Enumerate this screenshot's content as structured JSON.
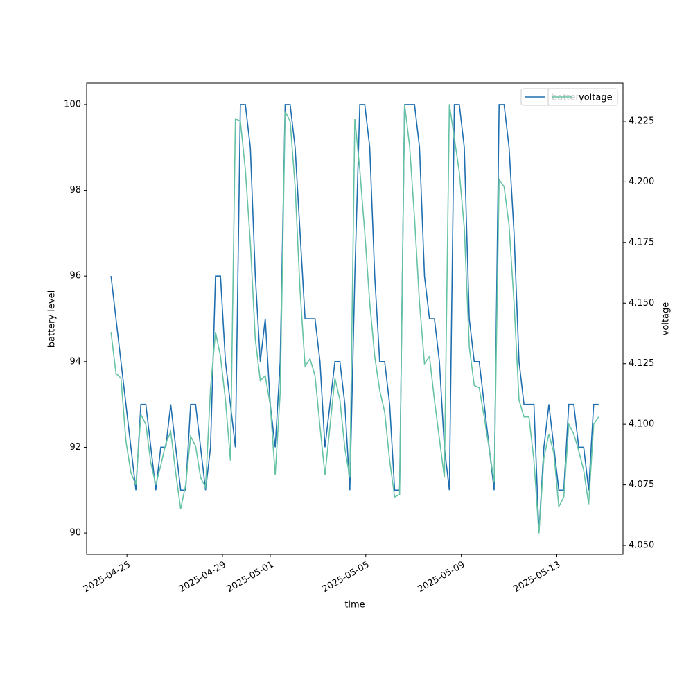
{
  "chart_data": {
    "type": "line",
    "xlabel": "time",
    "ylabel": "battery level",
    "y2label": "voltage",
    "x": [
      "2025-04-24 08:00",
      "2025-04-24 13:00",
      "2025-04-24 18:00",
      "2025-04-24 23:00",
      "2025-04-25 04:00",
      "2025-04-25 09:00",
      "2025-04-25 14:00",
      "2025-04-25 19:00",
      "2025-04-26 00:00",
      "2025-04-26 05:00",
      "2025-04-26 10:00",
      "2025-04-26 15:00",
      "2025-04-26 20:00",
      "2025-04-27 01:00",
      "2025-04-27 06:00",
      "2025-04-27 11:00",
      "2025-04-27 16:00",
      "2025-04-27 21:00",
      "2025-04-28 02:00",
      "2025-04-28 07:00",
      "2025-04-28 12:00",
      "2025-04-28 17:00",
      "2025-04-28 22:00",
      "2025-04-29 03:00",
      "2025-04-29 08:00",
      "2025-04-29 13:00",
      "2025-04-29 18:00",
      "2025-04-29 23:00",
      "2025-04-30 04:00",
      "2025-04-30 09:00",
      "2025-04-30 14:00",
      "2025-04-30 19:00",
      "2025-05-01 00:00",
      "2025-05-01 05:00",
      "2025-05-01 10:00",
      "2025-05-01 15:00",
      "2025-05-01 20:00",
      "2025-05-02 01:00",
      "2025-05-02 06:00",
      "2025-05-02 11:00",
      "2025-05-02 16:00",
      "2025-05-02 21:00",
      "2025-05-03 02:00",
      "2025-05-03 07:00",
      "2025-05-03 12:00",
      "2025-05-03 17:00",
      "2025-05-03 22:00",
      "2025-05-04 03:00",
      "2025-05-04 08:00",
      "2025-05-04 13:00",
      "2025-05-04 18:00",
      "2025-05-04 23:00",
      "2025-05-05 04:00",
      "2025-05-05 09:00",
      "2025-05-05 14:00",
      "2025-05-05 19:00",
      "2025-05-06 00:00",
      "2025-05-06 05:00",
      "2025-05-06 10:00",
      "2025-05-06 15:00",
      "2025-05-06 20:00",
      "2025-05-07 01:00",
      "2025-05-07 06:00",
      "2025-05-07 11:00",
      "2025-05-07 16:00",
      "2025-05-07 21:00",
      "2025-05-08 02:00",
      "2025-05-08 07:00",
      "2025-05-08 12:00",
      "2025-05-08 17:00",
      "2025-05-08 22:00",
      "2025-05-09 03:00",
      "2025-05-09 08:00",
      "2025-05-09 13:00",
      "2025-05-09 18:00",
      "2025-05-09 23:00",
      "2025-05-10 04:00",
      "2025-05-10 09:00",
      "2025-05-10 14:00",
      "2025-05-10 19:00",
      "2025-05-11 00:00",
      "2025-05-11 05:00",
      "2025-05-11 10:00",
      "2025-05-11 15:00",
      "2025-05-11 20:00",
      "2025-05-12 01:00",
      "2025-05-12 06:00",
      "2025-05-12 11:00",
      "2025-05-12 16:00",
      "2025-05-12 21:00",
      "2025-05-13 02:00",
      "2025-05-13 07:00",
      "2025-05-13 12:00",
      "2025-05-13 17:00",
      "2025-05-13 22:00",
      "2025-05-14 03:00",
      "2025-05-14 08:00",
      "2025-05-14 13:00",
      "2025-05-14 18:00"
    ],
    "series": [
      {
        "name": "battery",
        "color": "#1f6fb0",
        "values": [
          96,
          95,
          94,
          93,
          92,
          91,
          93,
          93,
          92,
          91,
          92,
          92,
          93,
          92,
          91,
          91,
          93,
          93,
          92,
          91,
          92,
          96,
          96,
          94,
          93,
          92,
          100,
          100,
          99,
          96,
          94,
          95,
          93,
          92,
          94,
          100,
          100,
          99,
          97,
          95,
          95,
          95,
          94,
          92,
          93,
          94,
          94,
          93,
          91,
          96,
          100,
          100,
          99,
          96,
          94,
          94,
          93,
          91,
          91,
          100,
          100,
          100,
          99,
          96,
          95,
          95,
          94,
          92,
          91,
          100,
          100,
          99,
          95,
          94,
          94,
          93,
          92,
          91,
          100,
          100,
          99,
          97,
          94,
          93,
          93,
          93,
          90,
          92,
          93,
          92,
          91,
          91,
          93,
          93,
          92,
          92,
          91,
          93,
          93
        ]
      },
      {
        "name": "voltage",
        "color": "#66c2a5",
        "axis": "y2",
        "values": [
          4.138,
          4.121,
          4.119,
          4.093,
          4.08,
          4.075,
          4.104,
          4.1,
          4.084,
          4.075,
          4.083,
          4.092,
          4.097,
          4.08,
          4.065,
          4.075,
          4.095,
          4.091,
          4.078,
          4.074,
          4.115,
          4.138,
          4.128,
          4.11,
          4.085,
          4.226,
          4.225,
          4.205,
          4.175,
          4.135,
          4.118,
          4.12,
          4.108,
          4.079,
          4.113,
          4.229,
          4.225,
          4.198,
          4.155,
          4.124,
          4.127,
          4.12,
          4.099,
          4.079,
          4.099,
          4.119,
          4.11,
          4.09,
          4.078,
          4.226,
          4.205,
          4.179,
          4.15,
          4.128,
          4.114,
          4.105,
          4.085,
          4.07,
          4.071,
          4.232,
          4.215,
          4.185,
          4.15,
          4.125,
          4.128,
          4.11,
          4.094,
          4.078,
          4.232,
          4.218,
          4.204,
          4.181,
          4.132,
          4.116,
          4.115,
          4.103,
          4.09,
          4.076,
          4.201,
          4.198,
          4.182,
          4.15,
          4.11,
          4.103,
          4.103,
          4.085,
          4.055,
          4.086,
          4.096,
          4.088,
          4.066,
          4.07,
          4.1,
          4.096,
          4.089,
          4.081,
          4.067,
          4.1,
          4.103
        ]
      }
    ],
    "xlim": [
      "2025-04-23 07:30",
      "2025-05-15 18:30"
    ],
    "xticks": [
      "2025-04-25",
      "2025-04-29",
      "2025-05-01",
      "2025-05-05",
      "2025-05-09",
      "2025-05-13"
    ],
    "ylim": [
      89.5,
      100.5
    ],
    "yticks": [
      90,
      92,
      94,
      96,
      98,
      100
    ],
    "y2lim": [
      4.0463,
      4.2407
    ],
    "y2ticks": [
      {
        "value": 4.05,
        "label": "4.050"
      },
      {
        "value": 4.075,
        "label": "4.075"
      },
      {
        "value": 4.1,
        "label": "4.100"
      },
      {
        "value": 4.125,
        "label": "4.125"
      },
      {
        "value": 4.15,
        "label": "4.150"
      },
      {
        "value": 4.175,
        "label": "4.175"
      },
      {
        "value": 4.2,
        "label": "4.200"
      },
      {
        "value": 4.225,
        "label": "4.225"
      }
    ],
    "legend": "upper right"
  }
}
